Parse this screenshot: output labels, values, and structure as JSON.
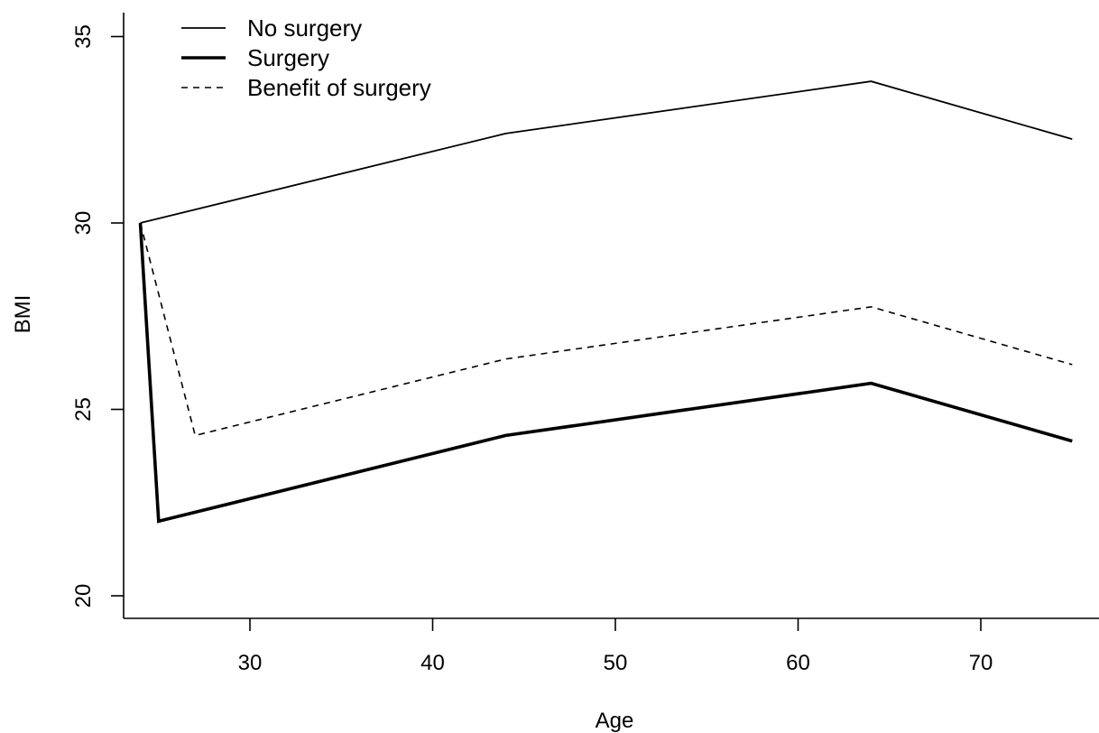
{
  "chart_data": {
    "type": "line",
    "title": "",
    "xlabel": "Age",
    "ylabel": "BMI",
    "xlim": [
      23,
      76
    ],
    "ylim": [
      19.4,
      35.6
    ],
    "xticks": [
      30,
      40,
      50,
      60,
      70
    ],
    "yticks": [
      20,
      25,
      30,
      35
    ],
    "grid": false,
    "legend_placement": "top-left",
    "series": [
      {
        "name": "No surgery",
        "style": "thin-solid",
        "x": [
          24,
          44,
          64,
          75
        ],
        "y": [
          30.0,
          32.4,
          33.8,
          32.25
        ]
      },
      {
        "name": "Surgery",
        "style": "thick-solid",
        "x": [
          24,
          25,
          44,
          64,
          75
        ],
        "y": [
          30.0,
          22.0,
          24.3,
          25.7,
          24.15
        ]
      },
      {
        "name": "Benefit of surgery",
        "style": "dashed",
        "x": [
          24,
          27,
          44,
          64,
          75
        ],
        "y": [
          30.0,
          24.3,
          26.35,
          27.75,
          26.2
        ]
      }
    ]
  }
}
